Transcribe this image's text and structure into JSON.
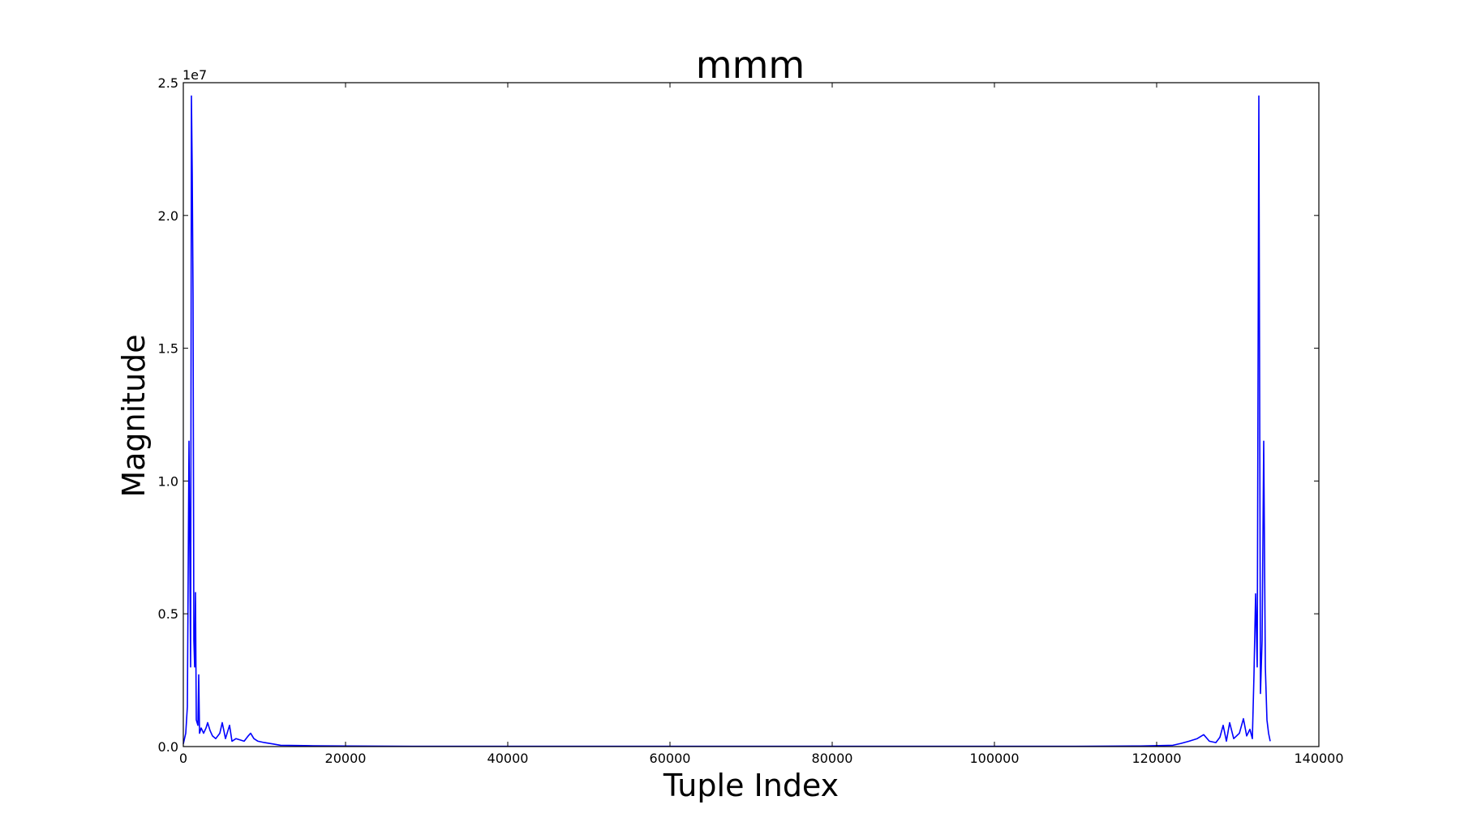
{
  "chart_data": {
    "type": "line",
    "title": "mmm",
    "xlabel": "Tuple Index",
    "ylabel": "Magnitude",
    "y_offset_label": "1e7",
    "xlim": [
      0,
      140000
    ],
    "ylim": [
      0,
      2.5
    ],
    "x_ticks": [
      "0",
      "20000",
      "40000",
      "60000",
      "80000",
      "100000",
      "120000",
      "140000"
    ],
    "y_ticks": [
      "0.0",
      "0.5",
      "1.0",
      "1.5",
      "2.0",
      "2.5"
    ],
    "grid": false,
    "color": "#0000ff",
    "series": [
      {
        "x": [
          0,
          300,
          500,
          700,
          900,
          1000,
          1100,
          1200,
          1300,
          1400,
          1500,
          1600,
          1800,
          1900,
          2000,
          2200,
          2500,
          2800,
          3000,
          3300,
          3600,
          4000,
          4500,
          4800,
          5200,
          5700,
          6000,
          6500,
          7500,
          8000,
          8300,
          8700,
          9200,
          10000,
          11000,
          12000,
          14000,
          16000,
          20000,
          30000,
          50000,
          70000,
          90000,
          110000,
          118000,
          122000,
          123000,
          124000,
          125000,
          125800,
          126500,
          127300,
          127800,
          128200,
          128600,
          129000,
          129500,
          130200,
          130700,
          131100,
          131500,
          131800,
          132000,
          132200,
          132400,
          132600,
          132800,
          133000,
          133200,
          133400,
          133600,
          133800,
          134000
        ],
        "y": [
          0.01,
          0.05,
          0.15,
          1.15,
          0.3,
          2.45,
          2.16,
          1.7,
          0.4,
          0.3,
          0.58,
          0.1,
          0.08,
          0.27,
          0.05,
          0.07,
          0.05,
          0.07,
          0.09,
          0.06,
          0.04,
          0.03,
          0.05,
          0.09,
          0.03,
          0.08,
          0.02,
          0.03,
          0.02,
          0.04,
          0.05,
          0.03,
          0.02,
          0.015,
          0.01,
          0.005,
          0.004,
          0.003,
          0.002,
          0.001,
          0.001,
          0.001,
          0.001,
          0.001,
          0.002,
          0.005,
          0.012,
          0.02,
          0.03,
          0.045,
          0.02,
          0.015,
          0.035,
          0.08,
          0.02,
          0.09,
          0.03,
          0.05,
          0.105,
          0.04,
          0.065,
          0.03,
          0.27,
          0.575,
          0.3,
          2.45,
          0.2,
          0.4,
          1.15,
          0.3,
          0.1,
          0.05,
          0.02
        ]
      }
    ]
  }
}
